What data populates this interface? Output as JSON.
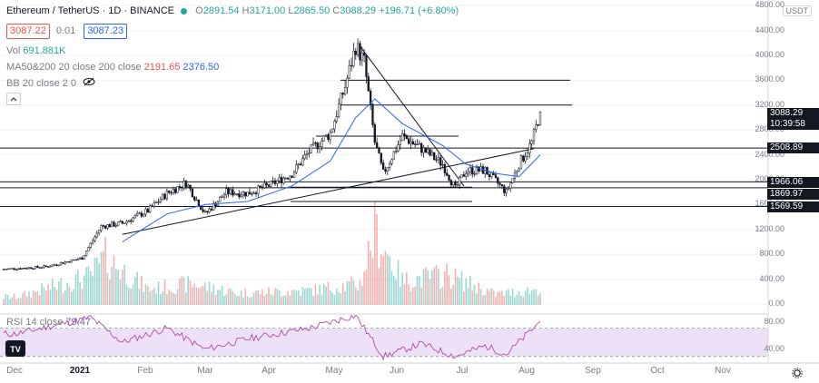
{
  "header": {
    "symbol": "Ethereum / TetherUS · 1D · BINANCE",
    "o_label": "O",
    "o_value": "2891.54",
    "h_label": "H",
    "h_value": "3171.00",
    "l_label": "L",
    "l_value": "2865.50",
    "c_label": "C",
    "c_value": "3088.29",
    "change": "+196.71 (+6.80%)",
    "sell_price": "3087.22",
    "spread": "0.01",
    "buy_price": "3087.23"
  },
  "indicators": {
    "vol_label": "Vol",
    "vol_value": "691.881K",
    "ma_label": "MA50&200 20 close 200 close",
    "ma_value1": "2191.65",
    "ma_value2": "2376.50",
    "bb_label": "BB 20 close 2 0"
  },
  "price_axis": {
    "currency": "USDT",
    "ticks": [
      "4800.00",
      "4400.00",
      "4000.00",
      "3600.00",
      "3200.00",
      "2800.00",
      "2400.00",
      "2000.00",
      "1600.00",
      "1200.00",
      "800.00",
      "400.00",
      "0.00"
    ],
    "last_price": "3088.29",
    "countdown": "10:39:58",
    "level_labels": [
      "2508.89",
      "1966.06",
      "1869.97",
      "1569.59"
    ]
  },
  "rsi": {
    "label": "RSI 14 close",
    "value": "79.47",
    "ticks": [
      "80.00",
      "40.00"
    ]
  },
  "time_axis": {
    "months": [
      "Dec",
      "2021",
      "Feb",
      "Mar",
      "Apr",
      "May",
      "Jun",
      "Jul",
      "Aug",
      "Sep",
      "Oct",
      "Nov"
    ]
  },
  "colors": {
    "up": "#26a69a",
    "down": "#ef5350",
    "line": "#131722",
    "ma": "#2962ff",
    "rsi": "#7e57c2",
    "rsi_bg": "#ece1f7"
  },
  "icons": {
    "eye": "eye-off-icon",
    "settings": "gear-icon",
    "logo": "tradingview-logo"
  },
  "chart_data": {
    "type": "candlestick",
    "title": "Ethereum / TetherUS · 1D · BINANCE",
    "x_range": [
      "Dec 2020",
      "Nov 2021"
    ],
    "y_range": [
      0,
      4800
    ],
    "price_path": [
      [
        "2020-11-25",
        560
      ],
      [
        "2020-12-15",
        600
      ],
      [
        "2021-01-01",
        740
      ],
      [
        "2021-01-10",
        1250
      ],
      [
        "2021-01-20",
        1300
      ],
      [
        "2021-02-01",
        1500
      ],
      [
        "2021-02-10",
        1780
      ],
      [
        "2021-02-19",
        1950
      ],
      [
        "2021-02-28",
        1450
      ],
      [
        "2021-03-10",
        1800
      ],
      [
        "2021-03-20",
        1780
      ],
      [
        "2021-03-31",
        1920
      ],
      [
        "2021-04-10",
        2100
      ],
      [
        "2021-04-18",
        2450
      ],
      [
        "2021-04-28",
        2750
      ],
      [
        "2021-05-05",
        3500
      ],
      [
        "2021-05-10",
        4150
      ],
      [
        "2021-05-14",
        3900
      ],
      [
        "2021-05-19",
        2600
      ],
      [
        "2021-05-23",
        2100
      ],
      [
        "2021-06-01",
        2700
      ],
      [
        "2021-06-10",
        2500
      ],
      [
        "2021-06-20",
        2250
      ],
      [
        "2021-06-26",
        1850
      ],
      [
        "2021-07-01",
        2150
      ],
      [
        "2021-07-10",
        2150
      ],
      [
        "2021-07-20",
        1800
      ],
      [
        "2021-07-26",
        2250
      ],
      [
        "2021-08-01",
        2600
      ],
      [
        "2021-08-05",
        3088
      ]
    ],
    "ma_path": [
      [
        "2021-01-20",
        1000
      ],
      [
        "2021-02-10",
        1450
      ],
      [
        "2021-02-28",
        1600
      ],
      [
        "2021-03-20",
        1650
      ],
      [
        "2021-04-10",
        1900
      ],
      [
        "2021-04-28",
        2300
      ],
      [
        "2021-05-10",
        3000
      ],
      [
        "2021-05-19",
        3300
      ],
      [
        "2021-06-01",
        2900
      ],
      [
        "2021-06-20",
        2550
      ],
      [
        "2021-07-01",
        2250
      ],
      [
        "2021-07-15",
        2100
      ],
      [
        "2021-07-26",
        2050
      ],
      [
        "2021-08-05",
        2400
      ]
    ],
    "volume_path": [
      [
        "2020-12-01",
        60
      ],
      [
        "2021-01-05",
        220
      ],
      [
        "2021-01-12",
        360
      ],
      [
        "2021-02-01",
        120
      ],
      [
        "2021-02-22",
        160
      ],
      [
        "2021-03-15",
        90
      ],
      [
        "2021-04-18",
        110
      ],
      [
        "2021-05-12",
        160
      ],
      [
        "2021-05-19",
        560
      ],
      [
        "2021-06-01",
        180
      ],
      [
        "2021-06-22",
        230
      ],
      [
        "2021-07-15",
        80
      ],
      [
        "2021-08-05",
        120
      ]
    ],
    "rsi_path": [
      [
        "2020-12-01",
        62
      ],
      [
        "2021-01-05",
        85
      ],
      [
        "2021-01-20",
        50
      ],
      [
        "2021-02-10",
        70
      ],
      [
        "2021-02-28",
        40
      ],
      [
        "2021-03-20",
        55
      ],
      [
        "2021-04-18",
        70
      ],
      [
        "2021-05-10",
        88
      ],
      [
        "2021-05-23",
        30
      ],
      [
        "2021-06-10",
        48
      ],
      [
        "2021-06-26",
        30
      ],
      [
        "2021-07-10",
        45
      ],
      [
        "2021-07-20",
        33
      ],
      [
        "2021-08-05",
        79.47
      ]
    ],
    "horizontal_levels": [
      3600,
      3200,
      2700,
      2508.89,
      1966.06,
      1869.97,
      1569.59
    ],
    "rsi_band": [
      30,
      70
    ]
  }
}
